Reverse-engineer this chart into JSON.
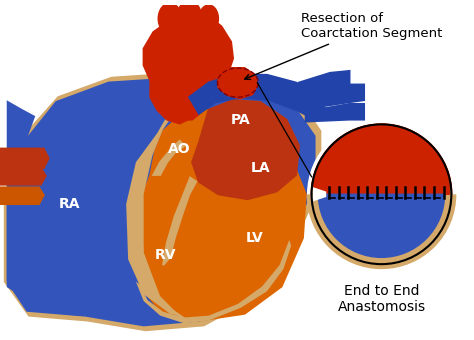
{
  "background_color": "#ffffff",
  "label_AO": "AO",
  "label_PA": "PA",
  "label_RA": "RA",
  "label_RV": "RV",
  "label_LA": "LA",
  "label_LV": "LV",
  "annotation_top": "Resection of\nCoarctation Segment",
  "annotation_bottom": "End to End\nAnastomosis",
  "color_blue": "#3355bb",
  "color_blue2": "#2244aa",
  "color_blue_dark": "#1a3366",
  "color_red": "#cc2200",
  "color_red2": "#bb3311",
  "color_orange": "#cc5500",
  "color_orange2": "#dd6600",
  "color_cream": "#d4a96a",
  "color_black": "#000000",
  "color_white": "#ffffff",
  "label_fontsize": 10,
  "annot_fontsize": 9.5
}
